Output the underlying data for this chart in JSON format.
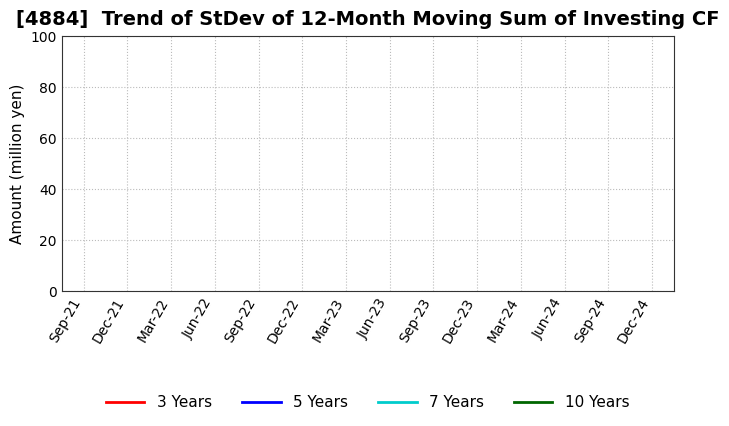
{
  "title": "[4884]  Trend of StDev of 12-Month Moving Sum of Investing CF",
  "ylabel": "Amount (million yen)",
  "ylim": [
    0,
    100
  ],
  "yticks": [
    0,
    20,
    40,
    60,
    80,
    100
  ],
  "x_labels": [
    "Sep-21",
    "Dec-21",
    "Mar-22",
    "Jun-22",
    "Sep-22",
    "Dec-22",
    "Mar-23",
    "Jun-23",
    "Sep-23",
    "Dec-23",
    "Mar-24",
    "Jun-24",
    "Sep-24",
    "Dec-24"
  ],
  "legend_entries": [
    {
      "label": "3 Years",
      "color": "#ff0000",
      "lw": 2
    },
    {
      "label": "5 Years",
      "color": "#0000ff",
      "lw": 2
    },
    {
      "label": "7 Years",
      "color": "#00cccc",
      "lw": 2
    },
    {
      "label": "10 Years",
      "color": "#006600",
      "lw": 2
    }
  ],
  "background_color": "#ffffff",
  "grid_color": "#bbbbbb",
  "title_fontsize": 14,
  "axis_label_fontsize": 11,
  "tick_fontsize": 10
}
